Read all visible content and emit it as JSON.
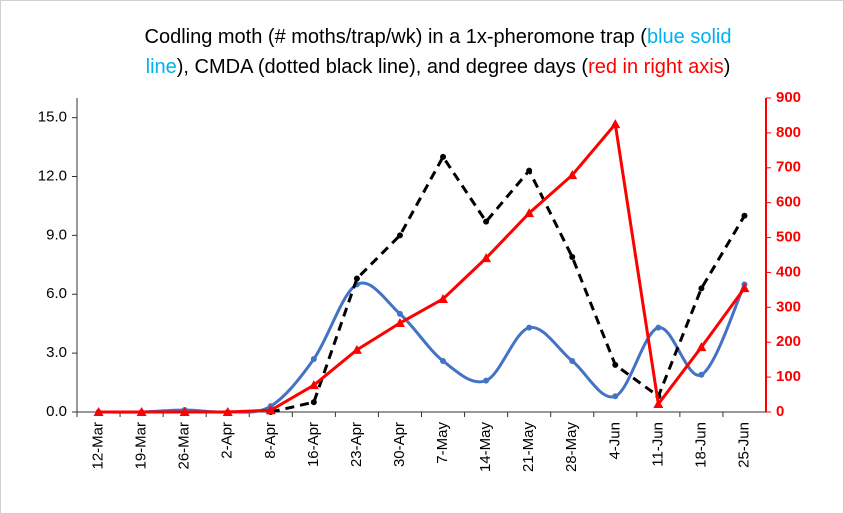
{
  "chart_data": {
    "type": "line",
    "title_lines": [
      [
        {
          "text": "Codling moth (# moths/trap/wk) in a 1x-pheromone trap (",
          "color": "#000000"
        },
        {
          "text": "blue solid",
          "color": "#00b0f0"
        }
      ],
      [
        {
          "text": "line",
          "color": "#00b0f0"
        },
        {
          "text": "), CMDA (dotted black line), and degree days (",
          "color": "#000000"
        },
        {
          "text": "red in right axis",
          "color": "#ff0000"
        },
        {
          "text": ")",
          "color": "#000000"
        }
      ]
    ],
    "categories": [
      "12-Mar",
      "19-Mar",
      "26-Mar",
      "2-Apr",
      "8-Apr",
      "16-Apr",
      "23-Apr",
      "30-Apr",
      "7-May",
      "14-May",
      "21-May",
      "28-May",
      "4-Jun",
      "11-Jun",
      "18-Jun",
      "25-Jun"
    ],
    "series": [
      {
        "color": "#4472c4",
        "style": "solid",
        "smooth": true,
        "marker": "circle",
        "values": [
          0,
          0,
          0.1,
          0,
          0.3,
          2.7,
          6.5,
          5.0,
          2.6,
          1.6,
          4.3,
          2.6,
          0.8,
          4.3,
          1.9,
          6.5
        ]
      },
      {
        "color": "#000000",
        "style": "dashed",
        "smooth": false,
        "marker": "circle",
        "values": [
          null,
          null,
          null,
          null,
          0,
          0.5,
          6.8,
          9.0,
          13.0,
          9.7,
          12.3,
          7.9,
          2.4,
          0.8,
          6.3,
          10.0
        ]
      },
      {
        "color": "#ff0000",
        "style": "solid",
        "smooth": false,
        "marker": "triangle",
        "axis": "y2",
        "values": [
          0,
          0,
          0,
          0,
          5,
          77,
          178,
          255,
          324,
          441,
          570,
          679,
          825,
          23,
          186,
          355
        ]
      }
    ],
    "ylim": [
      0,
      16
    ],
    "yticks": [
      {
        "value": 0,
        "label": "0.0"
      },
      {
        "value": 3,
        "label": "3.0"
      },
      {
        "value": 6,
        "label": "6.0"
      },
      {
        "value": 9,
        "label": "9.0"
      },
      {
        "value": 12,
        "label": "12.0"
      },
      {
        "value": 15,
        "label": "15.0"
      }
    ],
    "y2lim": [
      0,
      900
    ],
    "y2ticks": [
      0,
      100,
      200,
      300,
      400,
      500,
      600,
      700,
      800,
      900
    ],
    "y2color": "#ff0000"
  }
}
